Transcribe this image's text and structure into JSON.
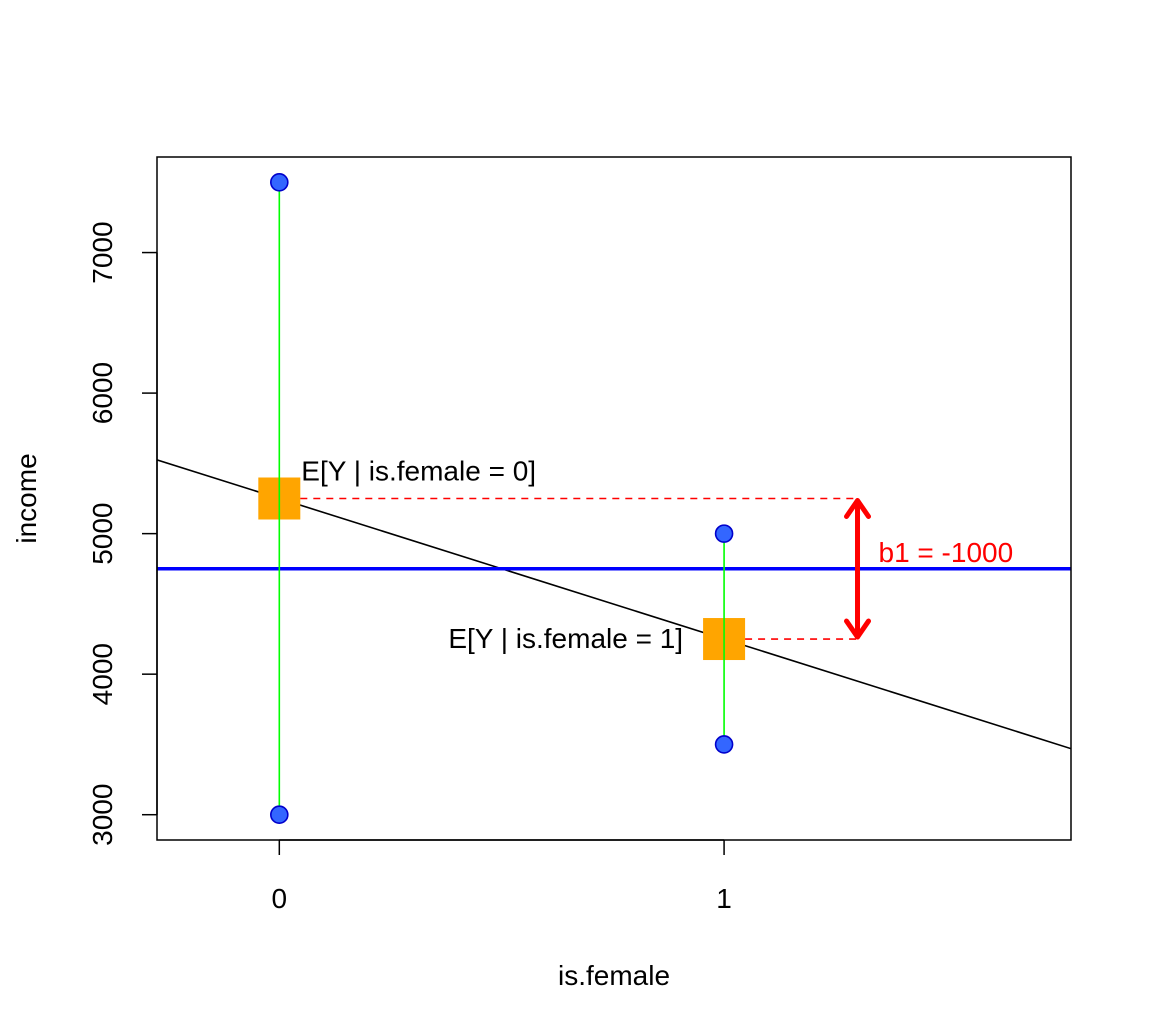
{
  "chart_data": {
    "type": "scatter",
    "xlabel": "is.female",
    "ylabel": "income",
    "xlim": [
      -0.275,
      1.78
    ],
    "ylim": [
      2820,
      7680
    ],
    "x_ticks": [
      0,
      1
    ],
    "y_ticks": [
      3000,
      4000,
      5000,
      6000,
      7000
    ],
    "grid": false,
    "legend": "none",
    "points": [
      {
        "x": 0,
        "y": 7500
      },
      {
        "x": 0,
        "y": 3000
      },
      {
        "x": 1,
        "y": 5000
      },
      {
        "x": 1,
        "y": 3500
      }
    ],
    "group_means": [
      {
        "x": 0,
        "y": 5250
      },
      {
        "x": 1,
        "y": 4250
      }
    ],
    "overall_mean": 4750,
    "regression_line": {
      "intercept": 5250,
      "slope": -1000
    },
    "annotations": {
      "mean0_label": "E[Y | is.female = 0]",
      "mean1_label": "E[Y | is.female = 1]",
      "b1_label": "b1 = -1000"
    },
    "arrow_x": 1.3,
    "colors": {
      "points_fill": "#3366ff",
      "points_stroke": "#0000cc",
      "group_range": "#00ff00",
      "mean_box": "#ffa500",
      "overall_mean_line": "#0000ff",
      "regression_line": "#000000",
      "annotation": "#ff0000"
    }
  }
}
